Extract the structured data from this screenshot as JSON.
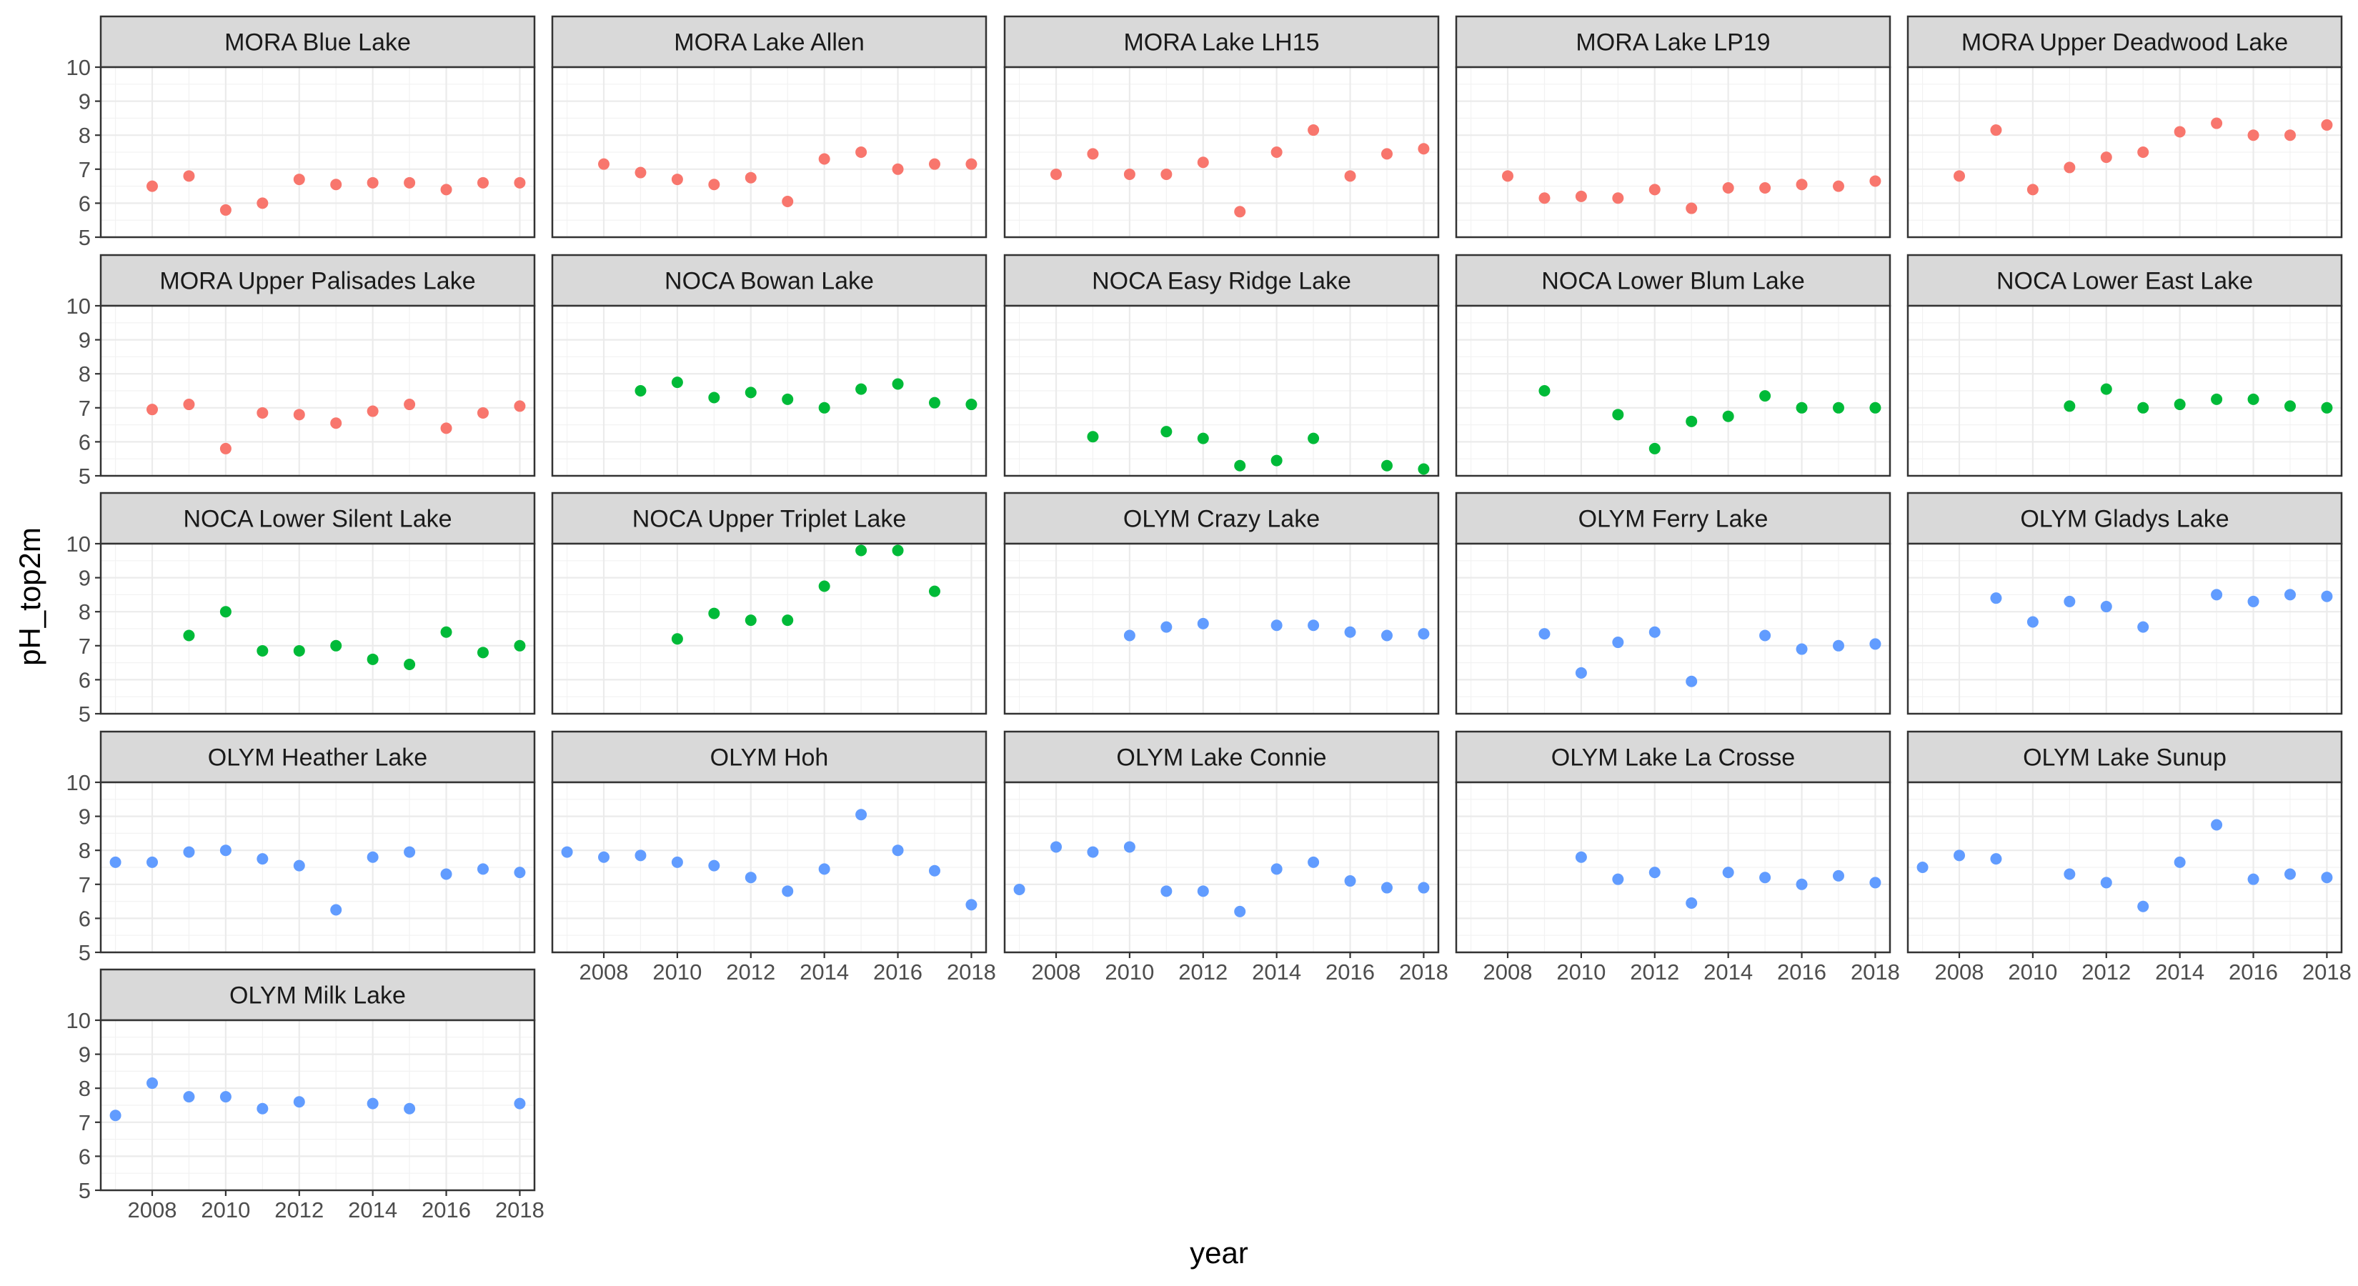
{
  "chart_data": {
    "type": "scatter",
    "xlabel": "year",
    "ylabel": "pH_top2m",
    "xlim": [
      2006.6,
      2018.4
    ],
    "ylim": [
      5,
      10
    ],
    "x_ticks": [
      "2008",
      "2010",
      "2012",
      "2014",
      "2016",
      "2018"
    ],
    "y_ticks": [
      "5",
      "6",
      "7",
      "8",
      "9",
      "10"
    ],
    "grid": true,
    "layout": "facet_wrap",
    "colors": {
      "MORA": "#F8766D",
      "NOCA": "#00BA38",
      "OLYM": "#619CFF"
    },
    "panels": [
      {
        "name": "MORA Blue Lake",
        "park": "MORA",
        "x": [
          2008,
          2009,
          2010,
          2011,
          2012,
          2013,
          2014,
          2015,
          2016,
          2017,
          2018
        ],
        "y": [
          6.5,
          6.8,
          5.8,
          6.0,
          6.7,
          6.55,
          6.6,
          6.6,
          6.4,
          6.6,
          6.6
        ]
      },
      {
        "name": "MORA Lake Allen",
        "park": "MORA",
        "x": [
          2008,
          2009,
          2010,
          2011,
          2012,
          2013,
          2014,
          2015,
          2016,
          2017,
          2018
        ],
        "y": [
          7.15,
          6.9,
          6.7,
          6.55,
          6.75,
          6.05,
          7.3,
          7.5,
          7.0,
          7.15,
          7.15
        ]
      },
      {
        "name": "MORA Lake LH15",
        "park": "MORA",
        "x": [
          2008,
          2009,
          2010,
          2011,
          2012,
          2013,
          2014,
          2015,
          2016,
          2017,
          2018
        ],
        "y": [
          6.85,
          7.45,
          6.85,
          6.85,
          7.2,
          5.75,
          7.5,
          8.15,
          6.8,
          7.45,
          7.6
        ]
      },
      {
        "name": "MORA Lake LP19",
        "park": "MORA",
        "x": [
          2008,
          2009,
          2010,
          2011,
          2012,
          2013,
          2014,
          2015,
          2016,
          2017,
          2018
        ],
        "y": [
          6.8,
          6.15,
          6.2,
          6.15,
          6.4,
          5.85,
          6.45,
          6.45,
          6.55,
          6.5,
          6.65
        ]
      },
      {
        "name": "MORA Upper Deadwood Lake",
        "park": "MORA",
        "x": [
          2008,
          2009,
          2010,
          2011,
          2012,
          2013,
          2014,
          2015,
          2016,
          2017,
          2018
        ],
        "y": [
          6.8,
          8.15,
          6.4,
          7.05,
          7.35,
          7.5,
          8.1,
          8.35,
          8.0,
          8.0,
          8.3
        ]
      },
      {
        "name": "MORA Upper Palisades Lake",
        "park": "MORA",
        "x": [
          2008,
          2009,
          2010,
          2011,
          2012,
          2013,
          2014,
          2015,
          2016,
          2017,
          2018
        ],
        "y": [
          6.95,
          7.1,
          5.8,
          6.85,
          6.8,
          6.55,
          6.9,
          7.1,
          6.4,
          6.85,
          7.05
        ]
      },
      {
        "name": "NOCA Bowan Lake",
        "park": "NOCA",
        "x": [
          2009,
          2010,
          2011,
          2012,
          2013,
          2014,
          2015,
          2016,
          2017,
          2018
        ],
        "y": [
          7.5,
          7.75,
          7.3,
          7.45,
          7.25,
          7.0,
          7.55,
          7.7,
          7.15,
          7.1
        ]
      },
      {
        "name": "NOCA Easy Ridge Lake",
        "park": "NOCA",
        "x": [
          2009,
          2011,
          2012,
          2013,
          2014,
          2015,
          2017,
          2018
        ],
        "y": [
          6.15,
          6.3,
          6.1,
          5.3,
          5.45,
          6.1,
          5.3,
          5.2
        ]
      },
      {
        "name": "NOCA Lower Blum Lake",
        "park": "NOCA",
        "x": [
          2009,
          2011,
          2012,
          2013,
          2014,
          2015,
          2016,
          2017,
          2018
        ],
        "y": [
          7.5,
          6.8,
          5.8,
          6.6,
          6.75,
          7.35,
          7.0,
          7.0,
          7.0
        ]
      },
      {
        "name": "NOCA Lower East Lake",
        "park": "NOCA",
        "x": [
          2011,
          2012,
          2013,
          2014,
          2015,
          2016,
          2017,
          2018
        ],
        "y": [
          7.05,
          7.55,
          7.0,
          7.1,
          7.25,
          7.25,
          7.05,
          7.0
        ]
      },
      {
        "name": "NOCA Lower Silent Lake",
        "park": "NOCA",
        "x": [
          2009,
          2010,
          2011,
          2012,
          2013,
          2014,
          2015,
          2016,
          2017,
          2018
        ],
        "y": [
          7.3,
          8.0,
          6.85,
          6.85,
          7.0,
          6.6,
          6.45,
          7.4,
          6.8,
          7.0
        ]
      },
      {
        "name": "NOCA Upper Triplet Lake",
        "park": "NOCA",
        "x": [
          2010,
          2011,
          2012,
          2013,
          2014,
          2015,
          2016,
          2017
        ],
        "y": [
          7.2,
          7.95,
          7.75,
          7.75,
          8.75,
          9.8,
          9.8,
          8.6
        ]
      },
      {
        "name": "OLYM Crazy Lake",
        "park": "OLYM",
        "x": [
          2010,
          2011,
          2012,
          2014,
          2015,
          2016,
          2017,
          2018
        ],
        "y": [
          7.3,
          7.55,
          7.65,
          7.6,
          7.6,
          7.4,
          7.3,
          7.35
        ]
      },
      {
        "name": "OLYM Ferry Lake",
        "park": "OLYM",
        "x": [
          2009,
          2010,
          2011,
          2012,
          2013,
          2015,
          2016,
          2017,
          2018
        ],
        "y": [
          7.35,
          6.2,
          7.1,
          7.4,
          5.95,
          7.3,
          6.9,
          7.0,
          7.05
        ]
      },
      {
        "name": "OLYM Gladys Lake",
        "park": "OLYM",
        "x": [
          2009,
          2010,
          2011,
          2012,
          2013,
          2015,
          2016,
          2017,
          2018
        ],
        "y": [
          8.4,
          7.7,
          8.3,
          8.15,
          7.55,
          8.5,
          8.3,
          8.5,
          8.45
        ]
      },
      {
        "name": "OLYM Heather Lake",
        "park": "OLYM",
        "x": [
          2007,
          2008,
          2009,
          2010,
          2011,
          2012,
          2013,
          2014,
          2015,
          2016,
          2017,
          2018
        ],
        "y": [
          7.65,
          7.65,
          7.95,
          8.0,
          7.75,
          7.55,
          6.25,
          7.8,
          7.95,
          7.3,
          7.45,
          7.35
        ]
      },
      {
        "name": "OLYM Hoh",
        "park": "OLYM",
        "x": [
          2007,
          2008,
          2009,
          2010,
          2011,
          2012,
          2013,
          2014,
          2015,
          2016,
          2017,
          2018
        ],
        "y": [
          7.95,
          7.8,
          7.85,
          7.65,
          7.55,
          7.2,
          6.8,
          7.45,
          9.05,
          8.0,
          7.4,
          6.4
        ]
      },
      {
        "name": "OLYM Lake Connie",
        "park": "OLYM",
        "x": [
          2007,
          2008,
          2009,
          2010,
          2011,
          2012,
          2013,
          2014,
          2015,
          2016,
          2017,
          2018
        ],
        "y": [
          6.85,
          8.1,
          7.95,
          8.1,
          6.8,
          6.8,
          6.2,
          7.45,
          7.65,
          7.1,
          6.9,
          6.9
        ]
      },
      {
        "name": "OLYM Lake La Crosse",
        "park": "OLYM",
        "x": [
          2010,
          2011,
          2012,
          2013,
          2014,
          2015,
          2016,
          2017,
          2018
        ],
        "y": [
          7.8,
          7.15,
          7.35,
          6.45,
          7.35,
          7.2,
          7.0,
          7.25,
          7.05
        ]
      },
      {
        "name": "OLYM Lake Sunup",
        "park": "OLYM",
        "x": [
          2007,
          2008,
          2009,
          2011,
          2012,
          2013,
          2014,
          2015,
          2016,
          2017,
          2018
        ],
        "y": [
          7.5,
          7.85,
          7.75,
          7.3,
          7.05,
          6.35,
          7.65,
          8.75,
          7.15,
          7.3,
          7.2
        ]
      },
      {
        "name": "OLYM Milk Lake",
        "park": "OLYM",
        "x": [
          2007,
          2008,
          2009,
          2010,
          2011,
          2012,
          2014,
          2015,
          2018
        ],
        "y": [
          7.2,
          8.15,
          7.75,
          7.75,
          7.4,
          7.6,
          7.55,
          7.4,
          7.55
        ]
      }
    ]
  }
}
